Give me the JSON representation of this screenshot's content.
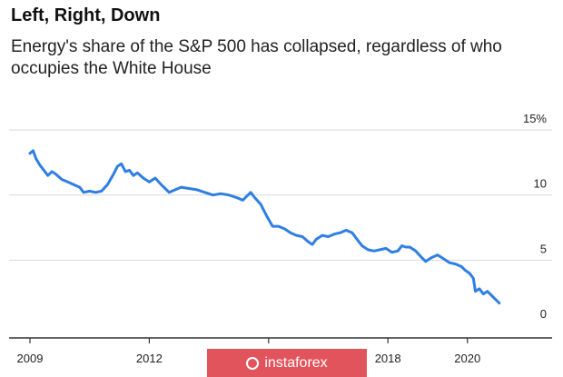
{
  "title": "Left, Right, Down",
  "subtitle": "Energy's share of the S&P 500 has collapsed, regardless of who occupies the White House",
  "watermark": {
    "text": "instaforex"
  },
  "colors": {
    "line": "#2f7fe3",
    "grid": "#d9d9d9",
    "axis": "#333333",
    "watermark_bg": "#e2545c"
  },
  "chart_data": {
    "type": "line",
    "title": "Left, Right, Down",
    "subtitle": "Energy's share of the S&P 500 has collapsed, regardless of who occupies the White House",
    "xlabel": "",
    "ylabel": "",
    "xlim": [
      2009.0,
      2020.85
    ],
    "ylim": [
      0,
      15
    ],
    "y_ticks": [
      0,
      5,
      10,
      15
    ],
    "y_tick_labels": [
      "0",
      "5",
      "10",
      "15%"
    ],
    "x_ticks": [
      2009,
      2012,
      2015,
      2018,
      2020
    ],
    "x_tick_labels": [
      "2009",
      "2012",
      "",
      "2018",
      "2020"
    ],
    "grid": "horizontal",
    "y_axis_side": "right",
    "series": [
      {
        "values": [
          [
            2009.0,
            13.2
          ],
          [
            2009.08,
            13.4
          ],
          [
            2009.15,
            12.8
          ],
          [
            2009.25,
            12.3
          ],
          [
            2009.35,
            11.9
          ],
          [
            2009.45,
            11.5
          ],
          [
            2009.55,
            11.8
          ],
          [
            2009.65,
            11.6
          ],
          [
            2009.8,
            11.2
          ],
          [
            2009.95,
            11.0
          ],
          [
            2010.1,
            10.8
          ],
          [
            2010.25,
            10.6
          ],
          [
            2010.35,
            10.2
          ],
          [
            2010.5,
            10.3
          ],
          [
            2010.65,
            10.2
          ],
          [
            2010.8,
            10.3
          ],
          [
            2010.95,
            10.8
          ],
          [
            2011.1,
            11.6
          ],
          [
            2011.2,
            12.2
          ],
          [
            2011.3,
            12.4
          ],
          [
            2011.4,
            11.8
          ],
          [
            2011.5,
            11.9
          ],
          [
            2011.6,
            11.5
          ],
          [
            2011.7,
            11.7
          ],
          [
            2011.85,
            11.3
          ],
          [
            2012.0,
            11.0
          ],
          [
            2012.15,
            11.3
          ],
          [
            2012.3,
            10.8
          ],
          [
            2012.4,
            10.5
          ],
          [
            2012.5,
            10.2
          ],
          [
            2012.65,
            10.4
          ],
          [
            2012.8,
            10.6
          ],
          [
            2013.0,
            10.5
          ],
          [
            2013.2,
            10.4
          ],
          [
            2013.4,
            10.2
          ],
          [
            2013.6,
            10.0
          ],
          [
            2013.8,
            10.1
          ],
          [
            2014.0,
            10.0
          ],
          [
            2014.2,
            9.8
          ],
          [
            2014.35,
            9.6
          ],
          [
            2014.45,
            9.9
          ],
          [
            2014.55,
            10.2
          ],
          [
            2014.65,
            9.8
          ],
          [
            2014.8,
            9.3
          ],
          [
            2014.95,
            8.4
          ],
          [
            2015.1,
            7.6
          ],
          [
            2015.25,
            7.6
          ],
          [
            2015.4,
            7.4
          ],
          [
            2015.55,
            7.1
          ],
          [
            2015.7,
            6.9
          ],
          [
            2015.85,
            6.8
          ],
          [
            2016.0,
            6.4
          ],
          [
            2016.1,
            6.2
          ],
          [
            2016.2,
            6.6
          ],
          [
            2016.35,
            6.9
          ],
          [
            2016.5,
            6.8
          ],
          [
            2016.65,
            7.0
          ],
          [
            2016.8,
            7.1
          ],
          [
            2016.95,
            7.3
          ],
          [
            2017.1,
            7.1
          ],
          [
            2017.2,
            6.7
          ],
          [
            2017.35,
            6.1
          ],
          [
            2017.5,
            5.8
          ],
          [
            2017.65,
            5.7
          ],
          [
            2017.8,
            5.8
          ],
          [
            2017.95,
            5.9
          ],
          [
            2018.1,
            5.6
          ],
          [
            2018.25,
            5.7
          ],
          [
            2018.35,
            6.1
          ],
          [
            2018.45,
            6.0
          ],
          [
            2018.55,
            6.0
          ],
          [
            2018.7,
            5.7
          ],
          [
            2018.85,
            5.2
          ],
          [
            2018.95,
            4.9
          ],
          [
            2019.1,
            5.2
          ],
          [
            2019.25,
            5.4
          ],
          [
            2019.4,
            5.1
          ],
          [
            2019.55,
            4.8
          ],
          [
            2019.7,
            4.7
          ],
          [
            2019.85,
            4.5
          ],
          [
            2019.95,
            4.2
          ],
          [
            2020.05,
            4.0
          ],
          [
            2020.15,
            3.6
          ],
          [
            2020.2,
            2.6
          ],
          [
            2020.3,
            2.8
          ],
          [
            2020.4,
            2.4
          ],
          [
            2020.5,
            2.6
          ],
          [
            2020.6,
            2.3
          ],
          [
            2020.7,
            2.0
          ],
          [
            2020.8,
            1.7
          ]
        ]
      }
    ]
  }
}
